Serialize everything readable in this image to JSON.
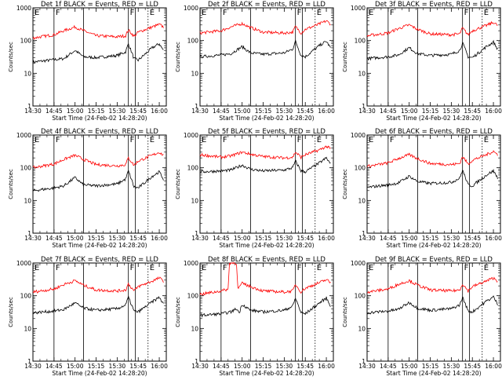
{
  "colors": {
    "background": "#ffffff",
    "axes": "#000000",
    "events": "#000000",
    "lld": "#ff0000"
  },
  "chart_data": {
    "type": "line",
    "grid": false,
    "ylabel": "Counts/sec",
    "xlabel": "Start Time (24-Feb-02 14:28:20)",
    "ylim": [
      1,
      1000
    ],
    "yscale": "log",
    "ytick_labels": [
      "1",
      "10",
      "100",
      "1000"
    ],
    "xlim": [
      "14:30",
      "16:05"
    ],
    "xtick_labels": [
      "14:30",
      "14:45",
      "15:00",
      "15:15",
      "15:30",
      "15:45",
      "16:00"
    ],
    "markers": [
      {
        "text": "E",
        "time": "14:30",
        "style": "dotted"
      },
      {
        "text": "F",
        "time": "14:45",
        "style": "solid"
      },
      {
        "text": "",
        "time": "15:06",
        "style": "solid"
      },
      {
        "text": "F",
        "time": "15:38",
        "style": "solid"
      },
      {
        "text": "",
        "time": "15:43",
        "style": "solid"
      },
      {
        "text": "E",
        "time": "15:52",
        "style": "dotted"
      }
    ],
    "series_names": [
      "Events",
      "LLD"
    ],
    "panels": [
      {
        "title": "Det 1f BLACK = Events, RED = LLD",
        "series": [
          {
            "name": "Events",
            "x": [
              "14:30",
              "14:45",
              "14:52",
              "15:00",
              "15:06",
              "15:15",
              "15:30",
              "15:36",
              "15:38",
              "15:42",
              "15:45",
              "15:55",
              "16:00",
              "16:03"
            ],
            "y": [
              22,
              26,
              28,
              50,
              32,
              30,
              35,
              45,
              80,
              28,
              25,
              60,
              80,
              50
            ]
          },
          {
            "name": "LLD",
            "x": [
              "14:30",
              "14:45",
              "14:52",
              "15:00",
              "15:06",
              "15:15",
              "15:30",
              "15:36",
              "15:38",
              "15:42",
              "15:45",
              "15:55",
              "16:00",
              "16:03"
            ],
            "y": [
              120,
              150,
              200,
              260,
              200,
              140,
              130,
              140,
              210,
              135,
              180,
              260,
              310,
              260
            ]
          }
        ]
      },
      {
        "title": "Det 2f BLACK = Events, RED = LLD",
        "series": [
          {
            "name": "Events",
            "x": [
              "14:30",
              "14:45",
              "14:52",
              "15:00",
              "15:06",
              "15:15",
              "15:30",
              "15:36",
              "15:38",
              "15:42",
              "15:45",
              "15:55",
              "16:00",
              "16:03"
            ],
            "y": [
              32,
              36,
              40,
              65,
              42,
              38,
              42,
              55,
              95,
              35,
              32,
              70,
              95,
              60
            ]
          },
          {
            "name": "LLD",
            "x": [
              "14:30",
              "14:45",
              "14:52",
              "15:00",
              "15:06",
              "15:15",
              "15:30",
              "15:36",
              "15:38",
              "15:42",
              "15:45",
              "15:55",
              "16:00",
              "16:03"
            ],
            "y": [
              170,
              200,
              260,
              330,
              250,
              180,
              170,
              180,
              270,
              170,
              220,
              320,
              400,
              320
            ]
          }
        ]
      },
      {
        "title": "Det 3f BLACK = Events, RED = LLD",
        "series": [
          {
            "name": "Events",
            "x": [
              "14:30",
              "14:45",
              "14:52",
              "15:00",
              "15:06",
              "15:15",
              "15:30",
              "15:36",
              "15:38",
              "15:42",
              "15:45",
              "15:55",
              "16:00",
              "16:03"
            ],
            "y": [
              28,
              32,
              36,
              60,
              40,
              35,
              38,
              50,
              85,
              32,
              30,
              65,
              90,
              55
            ]
          },
          {
            "name": "LLD",
            "x": [
              "14:30",
              "14:45",
              "14:52",
              "15:00",
              "15:06",
              "15:15",
              "15:30",
              "15:36",
              "15:38",
              "15:42",
              "15:45",
              "15:55",
              "16:00",
              "16:03"
            ],
            "y": [
              140,
              170,
              230,
              300,
              220,
              160,
              150,
              160,
              240,
              150,
              200,
              290,
              360,
              290
            ]
          }
        ]
      },
      {
        "title": "Det 4f BLACK = Events, RED = LLD",
        "series": [
          {
            "name": "Events",
            "x": [
              "14:30",
              "14:45",
              "14:52",
              "15:00",
              "15:06",
              "15:15",
              "15:30",
              "15:36",
              "15:38",
              "15:42",
              "15:45",
              "15:55",
              "16:00",
              "16:03"
            ],
            "y": [
              20,
              24,
              28,
              50,
              30,
              28,
              32,
              45,
              80,
              26,
              24,
              55,
              75,
              45
            ]
          },
          {
            "name": "LLD",
            "x": [
              "14:30",
              "14:45",
              "14:52",
              "15:00",
              "15:06",
              "15:15",
              "15:30",
              "15:36",
              "15:38",
              "15:42",
              "15:45",
              "15:55",
              "16:00",
              "16:03"
            ],
            "y": [
              100,
              130,
              180,
              240,
              180,
              125,
              115,
              125,
              200,
              120,
              160,
              240,
              300,
              240
            ]
          }
        ]
      },
      {
        "title": "Det 5f BLACK = Events, RED = LLD",
        "series": [
          {
            "name": "Events",
            "x": [
              "14:30",
              "14:45",
              "14:52",
              "15:00",
              "15:06",
              "15:15",
              "15:30",
              "15:36",
              "15:38",
              "15:42",
              "15:45",
              "15:55",
              "16:00",
              "16:03"
            ],
            "y": [
              75,
              80,
              85,
              120,
              90,
              80,
              85,
              100,
              160,
              80,
              75,
              140,
              200,
              130
            ]
          },
          {
            "name": "LLD",
            "x": [
              "14:30",
              "14:45",
              "14:52",
              "15:00",
              "15:06",
              "15:15",
              "15:30",
              "15:36",
              "15:38",
              "15:42",
              "15:45",
              "15:55",
              "16:00",
              "16:03"
            ],
            "y": [
              250,
              210,
              230,
              300,
              260,
              220,
              200,
              210,
              300,
              210,
              250,
              350,
              450,
              380
            ]
          }
        ]
      },
      {
        "title": "Det 6f BLACK = Events, RED = LLD",
        "series": [
          {
            "name": "Events",
            "x": [
              "14:30",
              "14:45",
              "14:52",
              "15:00",
              "15:06",
              "15:15",
              "15:30",
              "15:36",
              "15:38",
              "15:42",
              "15:45",
              "15:55",
              "16:00",
              "16:03"
            ],
            "y": [
              25,
              30,
              34,
              55,
              38,
              33,
              36,
              48,
              85,
              30,
              28,
              60,
              80,
              50
            ]
          },
          {
            "name": "LLD",
            "x": [
              "14:30",
              "14:45",
              "14:52",
              "15:00",
              "15:06",
              "15:15",
              "15:30",
              "15:36",
              "15:38",
              "15:42",
              "15:45",
              "15:55",
              "16:00",
              "16:03"
            ],
            "y": [
              110,
              140,
              190,
              250,
              190,
              135,
              125,
              135,
              220,
              130,
              170,
              250,
              320,
              250
            ]
          }
        ]
      },
      {
        "title": "Det 7f BLACK = Events, RED = LLD",
        "series": [
          {
            "name": "Events",
            "x": [
              "14:30",
              "14:45",
              "14:52",
              "15:00",
              "15:06",
              "15:15",
              "15:30",
              "15:36",
              "15:38",
              "15:42",
              "15:45",
              "15:55",
              "16:00",
              "16:03"
            ],
            "y": [
              30,
              34,
              38,
              60,
              42,
              36,
              40,
              52,
              90,
              34,
              32,
              65,
              90,
              55
            ]
          },
          {
            "name": "LLD",
            "x": [
              "14:30",
              "14:45",
              "14:52",
              "15:00",
              "15:06",
              "15:15",
              "15:30",
              "15:36",
              "15:38",
              "15:42",
              "15:45",
              "15:55",
              "16:00",
              "16:03"
            ],
            "y": [
              130,
              160,
              220,
              290,
              210,
              150,
              140,
              150,
              230,
              140,
              190,
              280,
              350,
              280
            ]
          }
        ]
      },
      {
        "title": "Det 8f BLACK = Events, RED = LLD",
        "series": [
          {
            "name": "Events",
            "x": [
              "14:30",
              "14:45",
              "14:52",
              "14:56",
              "14:58",
              "15:00",
              "15:06",
              "15:15",
              "15:30",
              "15:36",
              "15:38",
              "15:42",
              "15:45",
              "15:55",
              "16:00",
              "16:03"
            ],
            "y": [
              25,
              28,
              32,
              40,
              30,
              55,
              36,
              32,
              36,
              48,
              85,
              30,
              28,
              60,
              85,
              50
            ]
          },
          {
            "name": "LLD",
            "x": [
              "14:30",
              "14:45",
              "14:50",
              "14:51",
              "14:56",
              "14:57",
              "15:00",
              "15:06",
              "15:15",
              "15:30",
              "15:36",
              "15:38",
              "15:42",
              "15:45",
              "15:55",
              "16:00",
              "16:03"
            ],
            "y": [
              110,
              140,
              160,
              1000,
              1000,
              160,
              240,
              190,
              140,
              130,
              140,
              220,
              130,
              170,
              250,
              310,
              250
            ]
          }
        ]
      },
      {
        "title": "Det 9f BLACK = Events, RED = LLD",
        "series": [
          {
            "name": "Events",
            "x": [
              "14:30",
              "14:45",
              "14:52",
              "15:00",
              "15:06",
              "15:15",
              "15:30",
              "15:36",
              "15:38",
              "15:42",
              "15:45",
              "15:55",
              "16:00",
              "16:03"
            ],
            "y": [
              30,
              34,
              38,
              62,
              42,
              36,
              40,
              52,
              90,
              34,
              32,
              68,
              92,
              56
            ]
          },
          {
            "name": "LLD",
            "x": [
              "14:30",
              "14:45",
              "14:52",
              "15:00",
              "15:06",
              "15:15",
              "15:30",
              "15:36",
              "15:38",
              "15:42",
              "15:45",
              "15:55",
              "16:00",
              "16:03"
            ],
            "y": [
              130,
              160,
              220,
              290,
              210,
              150,
              140,
              150,
              230,
              140,
              190,
              280,
              350,
              280
            ]
          }
        ]
      }
    ]
  }
}
